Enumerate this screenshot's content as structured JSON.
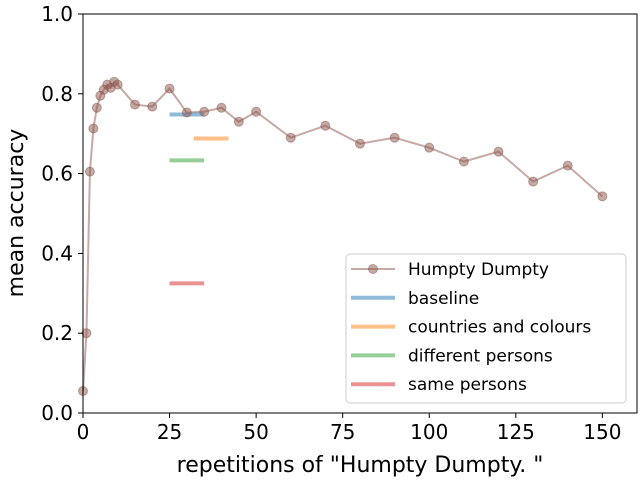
{
  "chart_data": {
    "type": "line",
    "xlabel": "repetitions of \"Humpty Dumpty. \"",
    "ylabel": "mean accuracy",
    "xlim": [
      0,
      160
    ],
    "ylim": [
      0.0,
      1.0
    ],
    "xticks": [
      0,
      25,
      50,
      75,
      100,
      125,
      150
    ],
    "xtick_labels": [
      "0",
      "25",
      "50",
      "75",
      "100",
      "125",
      "150"
    ],
    "yticks": [
      0.0,
      0.2,
      0.4,
      0.6,
      0.8,
      1.0
    ],
    "ytick_labels": [
      "0.0",
      "0.2",
      "0.4",
      "0.6",
      "0.8",
      "1.0"
    ],
    "grid": false,
    "legend_position": "lower-right",
    "series": [
      {
        "name": "Humpty Dumpty",
        "kind": "line-with-markers",
        "color": "#8c564b",
        "opacity": 0.5,
        "x": [
          0,
          1,
          2,
          3,
          4,
          5,
          6,
          7,
          8,
          9,
          10,
          15,
          20,
          25,
          30,
          35,
          40,
          45,
          50,
          60,
          70,
          80,
          90,
          100,
          110,
          120,
          130,
          140,
          150
        ],
        "y": [
          0.055,
          0.2,
          0.605,
          0.713,
          0.765,
          0.795,
          0.81,
          0.823,
          0.815,
          0.83,
          0.823,
          0.773,
          0.768,
          0.813,
          0.753,
          0.755,
          0.765,
          0.73,
          0.755,
          0.69,
          0.72,
          0.675,
          0.69,
          0.665,
          0.63,
          0.655,
          0.58,
          0.62,
          0.543
        ]
      },
      {
        "name": "baseline",
        "kind": "hline",
        "color": "#1f77b4",
        "opacity": 0.5,
        "x": [
          25,
          35
        ],
        "y": 0.748
      },
      {
        "name": "countries and colours",
        "kind": "hline",
        "color": "#ff7f0e",
        "opacity": 0.5,
        "x": [
          32,
          42
        ],
        "y": 0.688
      },
      {
        "name": "different persons",
        "kind": "hline",
        "color": "#2ca02c",
        "opacity": 0.5,
        "x": [
          25,
          35
        ],
        "y": 0.633
      },
      {
        "name": "same persons",
        "kind": "hline",
        "color": "#d62728",
        "opacity": 0.5,
        "x": [
          25,
          35
        ],
        "y": 0.325
      }
    ]
  }
}
